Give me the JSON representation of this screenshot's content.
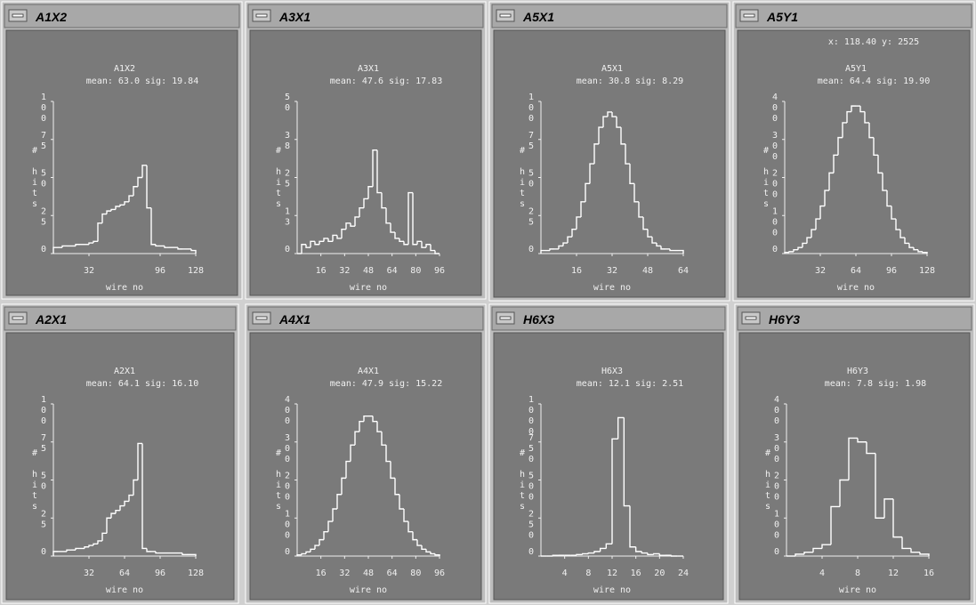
{
  "chart_data": [
    {
      "type": "histogram",
      "window_title": "A1X2",
      "title": "A1X2",
      "subtitle": "mean: 63.0 sig: 19.84",
      "xlabel": "wire no",
      "ylabel": "# hits",
      "color": "#ffffff",
      "bins": [
        0,
        4,
        8,
        12,
        16,
        20,
        24,
        28,
        32,
        36,
        40,
        44,
        48,
        52,
        56,
        60,
        64,
        68,
        72,
        76,
        80,
        84,
        88,
        92,
        96,
        100,
        104,
        108,
        112,
        116,
        120,
        124,
        128
      ],
      "values": [
        4,
        4,
        5,
        5,
        5,
        6,
        6,
        6,
        7,
        8,
        20,
        26,
        28,
        29,
        31,
        32,
        34,
        38,
        44,
        50,
        58,
        30,
        6,
        5,
        5,
        4,
        4,
        4,
        3,
        3,
        3,
        2
      ],
      "xlim": [
        0,
        128
      ],
      "xticks": [
        32,
        96,
        128
      ],
      "ylim": [
        0,
        100
      ],
      "yticks": [
        0,
        25,
        50,
        75,
        100
      ]
    },
    {
      "type": "histogram",
      "window_title": "A3X1",
      "title": "A3X1",
      "subtitle": "mean: 47.6 sig: 17.83",
      "xlabel": "wire no",
      "ylabel": "# hits",
      "color": "#ffffff",
      "bins": [
        0,
        3,
        6,
        9,
        12,
        15,
        18,
        21,
        24,
        27,
        30,
        33,
        36,
        39,
        42,
        45,
        48,
        51,
        54,
        57,
        60,
        63,
        66,
        69,
        72,
        75,
        78,
        81,
        84,
        87,
        90,
        93,
        96
      ],
      "values": [
        0,
        3,
        2,
        4,
        3,
        4,
        5,
        4,
        6,
        5,
        8,
        10,
        9,
        12,
        15,
        18,
        22,
        34,
        20,
        15,
        10,
        7,
        5,
        4,
        3,
        20,
        3,
        4,
        2,
        3,
        1,
        0
      ],
      "xlim": [
        0,
        96
      ],
      "xticks": [
        16,
        32,
        48,
        64,
        80,
        96
      ],
      "ylim": [
        0,
        50
      ],
      "yticks": [
        0,
        {
          "value": 12.5,
          "label": "13"
        },
        25,
        {
          "value": 37.5,
          "label": "38"
        },
        50
      ]
    },
    {
      "type": "histogram",
      "window_title": "A5X1",
      "title": "A5X1",
      "subtitle": "mean: 30.8 sig: 8.29",
      "xlabel": "wire no",
      "ylabel": "# hits",
      "color": "#ffffff",
      "bins": [
        0,
        2,
        4,
        6,
        8,
        10,
        12,
        14,
        16,
        18,
        20,
        22,
        24,
        26,
        28,
        30,
        32,
        34,
        36,
        38,
        40,
        42,
        44,
        46,
        48,
        50,
        52,
        54,
        56,
        58,
        60,
        62,
        64
      ],
      "values": [
        2,
        2,
        3,
        3,
        5,
        7,
        11,
        16,
        24,
        34,
        46,
        59,
        72,
        83,
        90,
        93,
        90,
        83,
        72,
        59,
        46,
        34,
        24,
        16,
        11,
        7,
        5,
        3,
        3,
        2,
        2,
        2
      ],
      "xlim": [
        0,
        64
      ],
      "xticks": [
        16,
        32,
        48,
        64
      ],
      "ylim": [
        0,
        100
      ],
      "yticks": [
        0,
        25,
        50,
        75,
        100
      ]
    },
    {
      "type": "histogram",
      "window_title": "A5Y1",
      "readout": "x: 118.40 y: 2525",
      "title": "A5Y1",
      "subtitle": "mean: 64.4 sig: 19.90",
      "xlabel": "wire no",
      "ylabel": "# hits",
      "color": "#ffffff",
      "bins": [
        0,
        4,
        8,
        12,
        16,
        20,
        24,
        28,
        32,
        36,
        40,
        44,
        48,
        52,
        56,
        60,
        64,
        68,
        72,
        76,
        80,
        84,
        88,
        92,
        96,
        100,
        104,
        108,
        112,
        116,
        120,
        124,
        128
      ],
      "values": [
        3,
        5,
        10,
        16,
        27,
        42,
        63,
        91,
        125,
        166,
        212,
        259,
        305,
        344,
        373,
        388,
        388,
        373,
        344,
        305,
        259,
        212,
        166,
        125,
        91,
        63,
        42,
        27,
        16,
        10,
        5,
        3
      ],
      "xlim": [
        0,
        128
      ],
      "xticks": [
        32,
        64,
        96,
        128
      ],
      "ylim": [
        0,
        400
      ],
      "yticks": [
        0,
        100,
        200,
        300,
        400
      ]
    },
    {
      "type": "histogram",
      "window_title": "A2X1",
      "title": "A2X1",
      "subtitle": "mean: 64.1 sig: 16.10",
      "xlabel": "wire no",
      "ylabel": "# hits",
      "color": "#ffffff",
      "bins": [
        0,
        4,
        8,
        12,
        16,
        20,
        24,
        28,
        32,
        36,
        40,
        44,
        48,
        52,
        56,
        60,
        64,
        68,
        72,
        76,
        80,
        84,
        88,
        92,
        96,
        100,
        104,
        108,
        112,
        116,
        120,
        124,
        128
      ],
      "values": [
        3,
        3,
        3,
        4,
        4,
        5,
        5,
        6,
        7,
        8,
        10,
        15,
        25,
        28,
        30,
        33,
        36,
        40,
        50,
        74,
        5,
        3,
        3,
        2,
        2,
        2,
        2,
        2,
        2,
        1,
        1,
        1
      ],
      "xlim": [
        0,
        128
      ],
      "xticks": [
        32,
        64,
        96,
        128
      ],
      "ylim": [
        0,
        100
      ],
      "yticks": [
        0,
        25,
        50,
        75,
        100
      ]
    },
    {
      "type": "histogram",
      "window_title": "A4X1",
      "title": "A4X1",
      "subtitle": "mean: 47.9 sig: 15.22",
      "xlabel": "wire no",
      "ylabel": "# hits",
      "color": "#ffffff",
      "bins": [
        0,
        3,
        6,
        9,
        12,
        15,
        18,
        21,
        24,
        27,
        30,
        33,
        36,
        39,
        42,
        45,
        48,
        51,
        54,
        57,
        60,
        63,
        66,
        69,
        72,
        75,
        78,
        81,
        84,
        87,
        90,
        93,
        96
      ],
      "values": [
        3,
        6,
        11,
        18,
        28,
        43,
        64,
        91,
        124,
        162,
        205,
        249,
        292,
        327,
        354,
        368,
        368,
        354,
        327,
        292,
        249,
        205,
        162,
        124,
        91,
        64,
        43,
        28,
        18,
        11,
        6,
        3
      ],
      "xlim": [
        0,
        96
      ],
      "xticks": [
        16,
        32,
        48,
        64,
        80,
        96
      ],
      "ylim": [
        0,
        400
      ],
      "yticks": [
        0,
        100,
        200,
        300,
        400
      ]
    },
    {
      "type": "histogram",
      "window_title": "H6X3",
      "title": "H6X3",
      "subtitle": "mean: 12.1 sig: 2.51",
      "xlabel": "wire no",
      "ylabel": "# hits",
      "color": "#ffffff",
      "bins": [
        0,
        1,
        2,
        3,
        4,
        5,
        6,
        7,
        8,
        9,
        10,
        11,
        12,
        13,
        14,
        15,
        16,
        17,
        18,
        19,
        20,
        21,
        22,
        23,
        24
      ],
      "values": [
        0,
        0,
        5,
        5,
        5,
        5,
        10,
        15,
        20,
        30,
        50,
        80,
        770,
        910,
        330,
        60,
        30,
        20,
        10,
        15,
        5,
        5,
        0,
        0
      ],
      "xlim": [
        0,
        24
      ],
      "xticks": [
        4,
        8,
        12,
        16,
        20,
        24
      ],
      "ylim": [
        0,
        1000
      ],
      "yticks": [
        0,
        250,
        500,
        750,
        1000
      ]
    },
    {
      "type": "histogram",
      "window_title": "H6Y3",
      "title": "H6Y3",
      "subtitle": "mean: 7.8 sig: 1.98",
      "xlabel": "wire no",
      "ylabel": "# hits",
      "color": "#ffffff",
      "bins": [
        0,
        1,
        2,
        3,
        4,
        5,
        6,
        7,
        8,
        9,
        10,
        11,
        12,
        13,
        14,
        15,
        16
      ],
      "values": [
        0,
        5,
        10,
        20,
        30,
        130,
        200,
        310,
        300,
        270,
        100,
        150,
        50,
        20,
        10,
        5
      ],
      "xlim": [
        0,
        16
      ],
      "xticks": [
        4,
        8,
        12,
        16
      ],
      "ylim": [
        0,
        400
      ],
      "yticks": [
        0,
        100,
        200,
        300,
        400
      ]
    }
  ]
}
